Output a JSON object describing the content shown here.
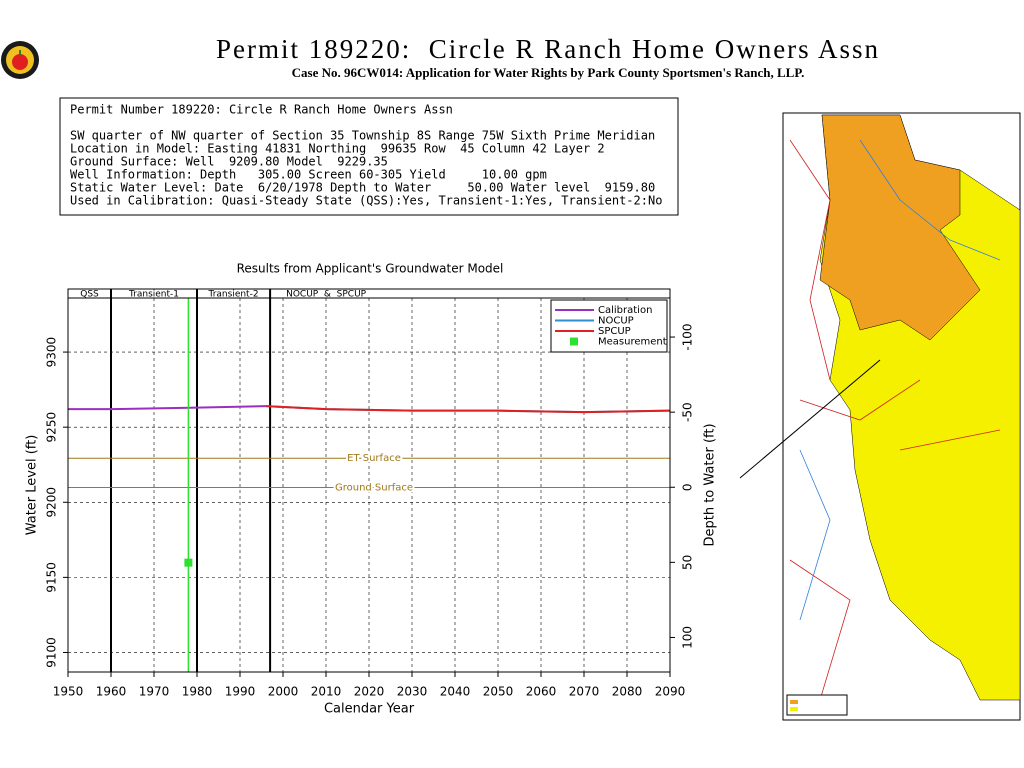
{
  "header": {
    "title": "Permit 189220:  Circle R Ranch Home Owners Assn",
    "subtitle": "Case No. 96CW014: Application for Water Rights by Park County Sportsmen's Ranch, LLP."
  },
  "info_box": {
    "lines": [
      "Permit Number 189220: Circle R Ranch Home Owners Assn",
      "SW quarter of NW quarter of Section 35 Township 8S Range 75W Sixth Prime Meridian",
      "Location in Model: Easting 41831 Northing  99635 Row  45 Column 42 Layer 2",
      "Ground Surface: Well  9209.80 Model  9229.35",
      "Well Information: Depth   305.00 Screen 60-305 Yield     10.00 gpm",
      "Static Water Level: Date  6/20/1978 Depth to Water     50.00 Water level  9159.80",
      "Used in Calibration: Quasi-Steady State (QSS):Yes, Transient-1:Yes, Transient-2:No"
    ]
  },
  "chart_data": {
    "type": "line",
    "title": "Results from Applicant's Groundwater Model",
    "xlabel": "Calendar Year",
    "ylabel": "Water Level (ft)",
    "y2label": "Depth to Water (ft)",
    "xlim": [
      1950,
      2090
    ],
    "xticks": [
      1950,
      1960,
      1970,
      1980,
      1990,
      2000,
      2010,
      2020,
      2030,
      2040,
      2050,
      2060,
      2070,
      2080,
      2090
    ],
    "ylim": [
      9087,
      9336
    ],
    "yticks": [
      9100,
      9150,
      9200,
      9250,
      9300
    ],
    "y2lim": [
      123,
      -126
    ],
    "y2ticks": [
      -100,
      -50,
      0,
      50,
      100
    ],
    "grid": true,
    "periods": [
      {
        "label": "QSS",
        "start": 1950,
        "end": 1960
      },
      {
        "label": "Transient-1",
        "start": 1960,
        "end": 1980
      },
      {
        "label": "Transient-2",
        "start": 1980,
        "end": 1997
      },
      {
        "label": "NOCUP  &  SPCUP",
        "start": 1997,
        "end": 2090
      }
    ],
    "annotations": [
      {
        "label": "ET Surface",
        "value": 9229.35
      },
      {
        "label": "Ground Surface",
        "value": 9209.8
      }
    ],
    "series": [
      {
        "name": "Calibration",
        "color": "#9a2fc0",
        "x": [
          1950,
          1960,
          1980,
          1996
        ],
        "values": [
          9262,
          9262,
          9263,
          9264
        ]
      },
      {
        "name": "NOCUP",
        "color": "#2f8fd0",
        "x": [
          1996,
          2010,
          2030,
          2050,
          2070,
          2090
        ],
        "values": [
          9264,
          9262,
          9261,
          9261,
          9260,
          9261
        ]
      },
      {
        "name": "SPCUP",
        "color": "#e02020",
        "x": [
          1996,
          2010,
          2030,
          2050,
          2070,
          2090
        ],
        "values": [
          9264,
          9262,
          9261,
          9261,
          9260,
          9261
        ]
      },
      {
        "name": "Measurement",
        "color": "#30e030",
        "x": [
          1978
        ],
        "values": [
          9159.8
        ]
      }
    ]
  }
}
